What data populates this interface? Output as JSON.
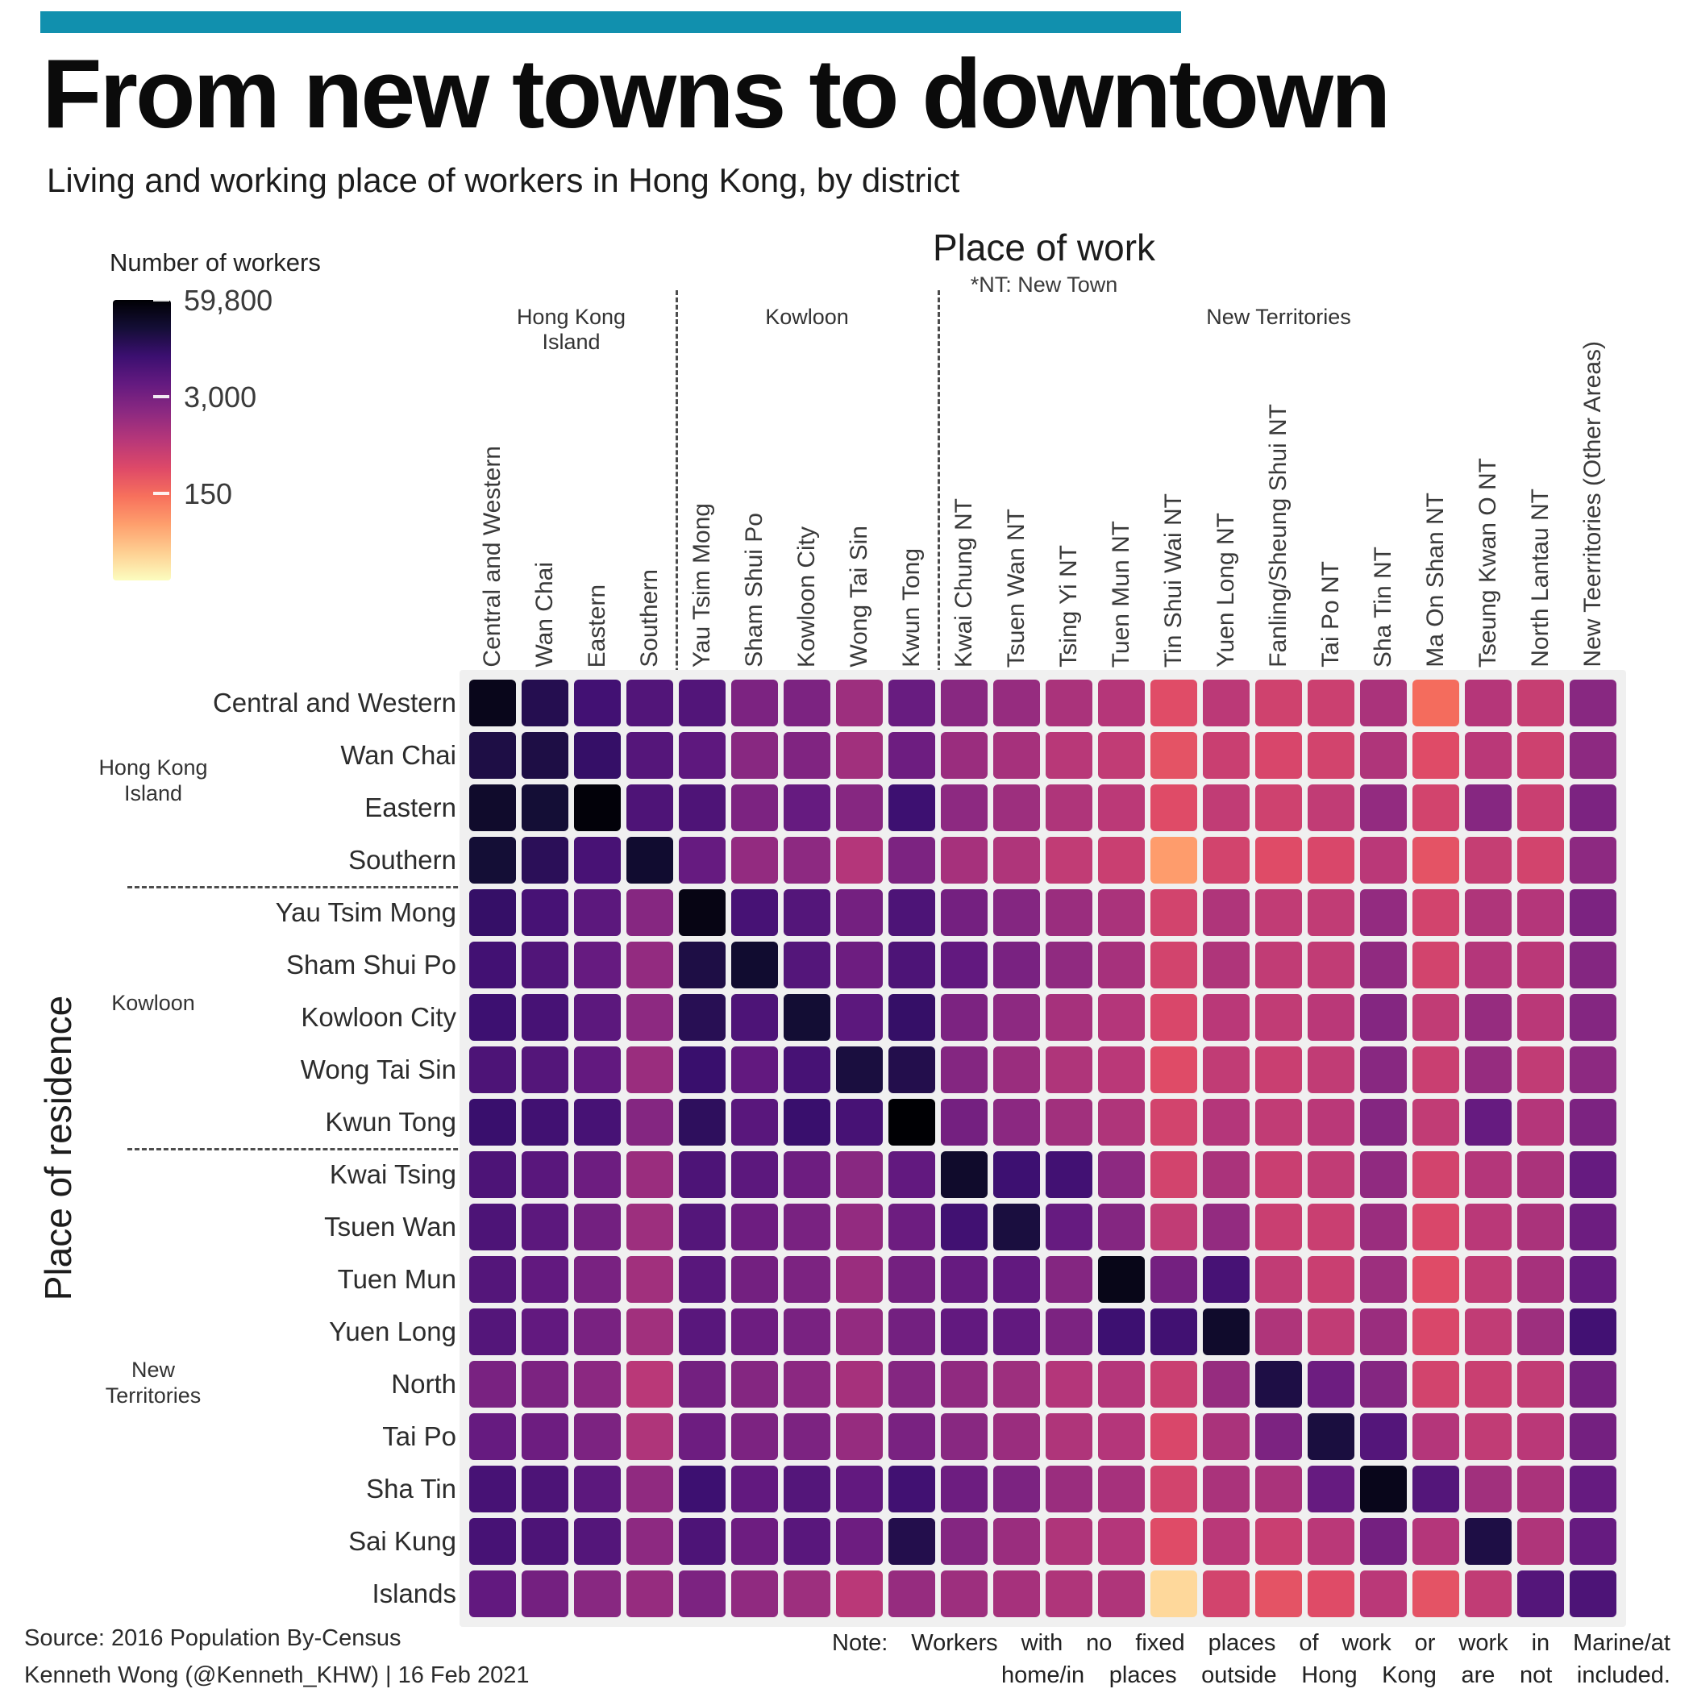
{
  "colors": {
    "accent_bar": "#1190ae",
    "panel_bg": "#f0f0f0"
  },
  "header": {
    "title": "From new towns to downtown",
    "subtitle": "Living and working place of workers in Hong Kong, by district"
  },
  "legend": {
    "title": "Number of workers",
    "tick_labels": [
      "59,800",
      "3,000",
      "150"
    ]
  },
  "axes": {
    "x_title": "Place of work",
    "x_note": "*NT: New Town",
    "y_title": "Place of residence",
    "col_groups": [
      {
        "label": "Hong Kong\nIsland",
        "span": 4
      },
      {
        "label": "Kowloon",
        "span": 5
      },
      {
        "label": "New Territories",
        "span": 13
      }
    ],
    "row_groups": [
      {
        "label": "Hong Kong\nIsland",
        "span": 4
      },
      {
        "label": "Kowloon",
        "span": 5
      },
      {
        "label": "New\nTerritories",
        "span": 9
      }
    ]
  },
  "chart_data": {
    "type": "heatmap",
    "title": "From new towns to downtown",
    "subtitle": "Living and working place of workers in Hong Kong, by district",
    "x_axis": "Place of work",
    "y_axis": "Place of residence",
    "columns": [
      "Central and Western",
      "Wan Chai",
      "Eastern",
      "Southern",
      "Yau Tsim Mong",
      "Sham Shui Po",
      "Kowloon City",
      "Wong Tai Sin",
      "Kwun Tong",
      "Kwai Chung NT",
      "Tsuen Wan NT",
      "Tsing Yi NT",
      "Tuen Mun NT",
      "Tin Shui Wai NT",
      "Yuen Long NT",
      "Fanling/Sheung Shui NT",
      "Tai Po NT",
      "Sha Tin NT",
      "Ma On Shan NT",
      "Tseung Kwan O NT",
      "North Lantau NT",
      "New Teerritories (Other Areas)"
    ],
    "rows": [
      "Central and Western",
      "Wan Chai",
      "Eastern",
      "Southern",
      "Yau Tsim Mong",
      "Sham Shui Po",
      "Kowloon City",
      "Wong Tai Sin",
      "Kwun Tong",
      "Kwai Tsing",
      "Tsuen Wan",
      "Tuen Mun",
      "Yuen Long",
      "North",
      "Tai Po",
      "Sha Tin",
      "Sai Kung",
      "Islands"
    ],
    "values": [
      [
        40000,
        17000,
        9000,
        6500,
        6500,
        2600,
        2600,
        1300,
        4000,
        2000,
        1500,
        1000,
        800,
        300,
        700,
        450,
        500,
        1000,
        150,
        800,
        550,
        2000
      ],
      [
        20000,
        20000,
        12000,
        6000,
        5000,
        2000,
        2400,
        1200,
        3600,
        1400,
        1100,
        750,
        620,
        260,
        520,
        370,
        420,
        900,
        310,
        720,
        470,
        1800
      ],
      [
        30000,
        25000,
        55000,
        7000,
        7000,
        2600,
        4200,
        2100,
        10000,
        1800,
        1300,
        900,
        700,
        310,
        620,
        460,
        620,
        1600,
        420,
        2100,
        520,
        2600
      ],
      [
        25000,
        15000,
        8000,
        28000,
        4200,
        1600,
        1800,
        820,
        2600,
        1100,
        900,
        620,
        520,
        60,
        420,
        310,
        360,
        720,
        260,
        560,
        420,
        1800
      ],
      [
        12000,
        8200,
        5200,
        2100,
        45000,
        8200,
        6200,
        3100,
        7200,
        3100,
        2200,
        1400,
        1000,
        420,
        900,
        620,
        620,
        1600,
        420,
        900,
        820,
        2600
      ],
      [
        9000,
        6600,
        4200,
        1600,
        20000,
        28000,
        6200,
        3600,
        7200,
        4600,
        2800,
        1700,
        1100,
        420,
        900,
        620,
        620,
        1700,
        420,
        820,
        720,
        2200
      ],
      [
        10000,
        8200,
        5200,
        1800,
        16000,
        7200,
        26000,
        5200,
        12000,
        2600,
        1800,
        1100,
        820,
        360,
        720,
        620,
        720,
        2200,
        620,
        1500,
        720,
        2200
      ],
      [
        7200,
        6200,
        4600,
        1400,
        11000,
        4600,
        8200,
        22000,
        18000,
        2200,
        1400,
        900,
        720,
        310,
        620,
        520,
        620,
        2000,
        520,
        1500,
        620,
        1800
      ],
      [
        11000,
        9200,
        8200,
        2200,
        14000,
        5600,
        11000,
        8200,
        59800,
        3100,
        1900,
        1200,
        900,
        420,
        820,
        620,
        720,
        2200,
        620,
        4200,
        820,
        2600
      ],
      [
        7200,
        5600,
        3600,
        1400,
        7200,
        5200,
        3600,
        2000,
        4600,
        30000,
        10000,
        9000,
        1800,
        420,
        1000,
        520,
        620,
        1700,
        420,
        820,
        1000,
        4200
      ],
      [
        7200,
        5200,
        3200,
        1300,
        6200,
        3600,
        2800,
        1600,
        3600,
        9200,
        22000,
        4200,
        2200,
        620,
        1600,
        520,
        520,
        1400,
        360,
        720,
        1000,
        3600
      ],
      [
        6200,
        4600,
        2800,
        1200,
        5600,
        3200,
        2600,
        1400,
        3100,
        4200,
        4600,
        2200,
        42000,
        3100,
        8200,
        620,
        520,
        1300,
        310,
        620,
        1100,
        4200
      ],
      [
        6200,
        4600,
        2800,
        1200,
        5600,
        3600,
        2800,
        1600,
        3200,
        4600,
        4600,
        2600,
        10000,
        9200,
        30000,
        900,
        620,
        1400,
        360,
        620,
        1300,
        9000
      ],
      [
        2800,
        2600,
        1900,
        720,
        3200,
        2200,
        1900,
        1100,
        2200,
        1700,
        1300,
        820,
        820,
        520,
        1500,
        20000,
        3600,
        2200,
        420,
        520,
        620,
        3100
      ],
      [
        4200,
        3600,
        2600,
        900,
        3600,
        2600,
        2600,
        1500,
        2800,
        2000,
        1400,
        900,
        820,
        360,
        1000,
        2600,
        22000,
        6200,
        820,
        620,
        720,
        3100
      ],
      [
        8200,
        7200,
        5200,
        1700,
        10000,
        4600,
        6200,
        4600,
        9200,
        3600,
        2600,
        1400,
        1100,
        420,
        1000,
        1000,
        4200,
        40000,
        6200,
        1200,
        1000,
        4200
      ],
      [
        8200,
        7200,
        6200,
        1800,
        7200,
        3600,
        5600,
        3600,
        18000,
        2200,
        1400,
        900,
        820,
        310,
        720,
        520,
        720,
        3100,
        820,
        20000,
        900,
        4200
      ],
      [
        4600,
        3100,
        2000,
        1500,
        2600,
        1700,
        1300,
        720,
        1500,
        1300,
        1100,
        900,
        900,
        20,
        420,
        260,
        310,
        720,
        260,
        620,
        6200,
        7200
      ]
    ],
    "scale": {
      "type": "log",
      "min": 10,
      "max": 59800
    },
    "legend_ticks": [
      59800,
      3000,
      150
    ],
    "colormap_stops": [
      "#000004",
      "#140e36",
      "#3b0f70",
      "#641a80",
      "#8c2981",
      "#b73779",
      "#de4968",
      "#f7705c",
      "#fe9f6d",
      "#fecf92",
      "#fcfdbf"
    ]
  },
  "footer": {
    "source": "Source: 2016 Population By-Census",
    "credit": "Kenneth Wong (@Kenneth_KHW) | 16 Feb 2021",
    "note_line1": "Note: Workers with no fixed places of work or work in Marine/at",
    "note_line2": "home/in places outside Hong Kong are not included."
  }
}
